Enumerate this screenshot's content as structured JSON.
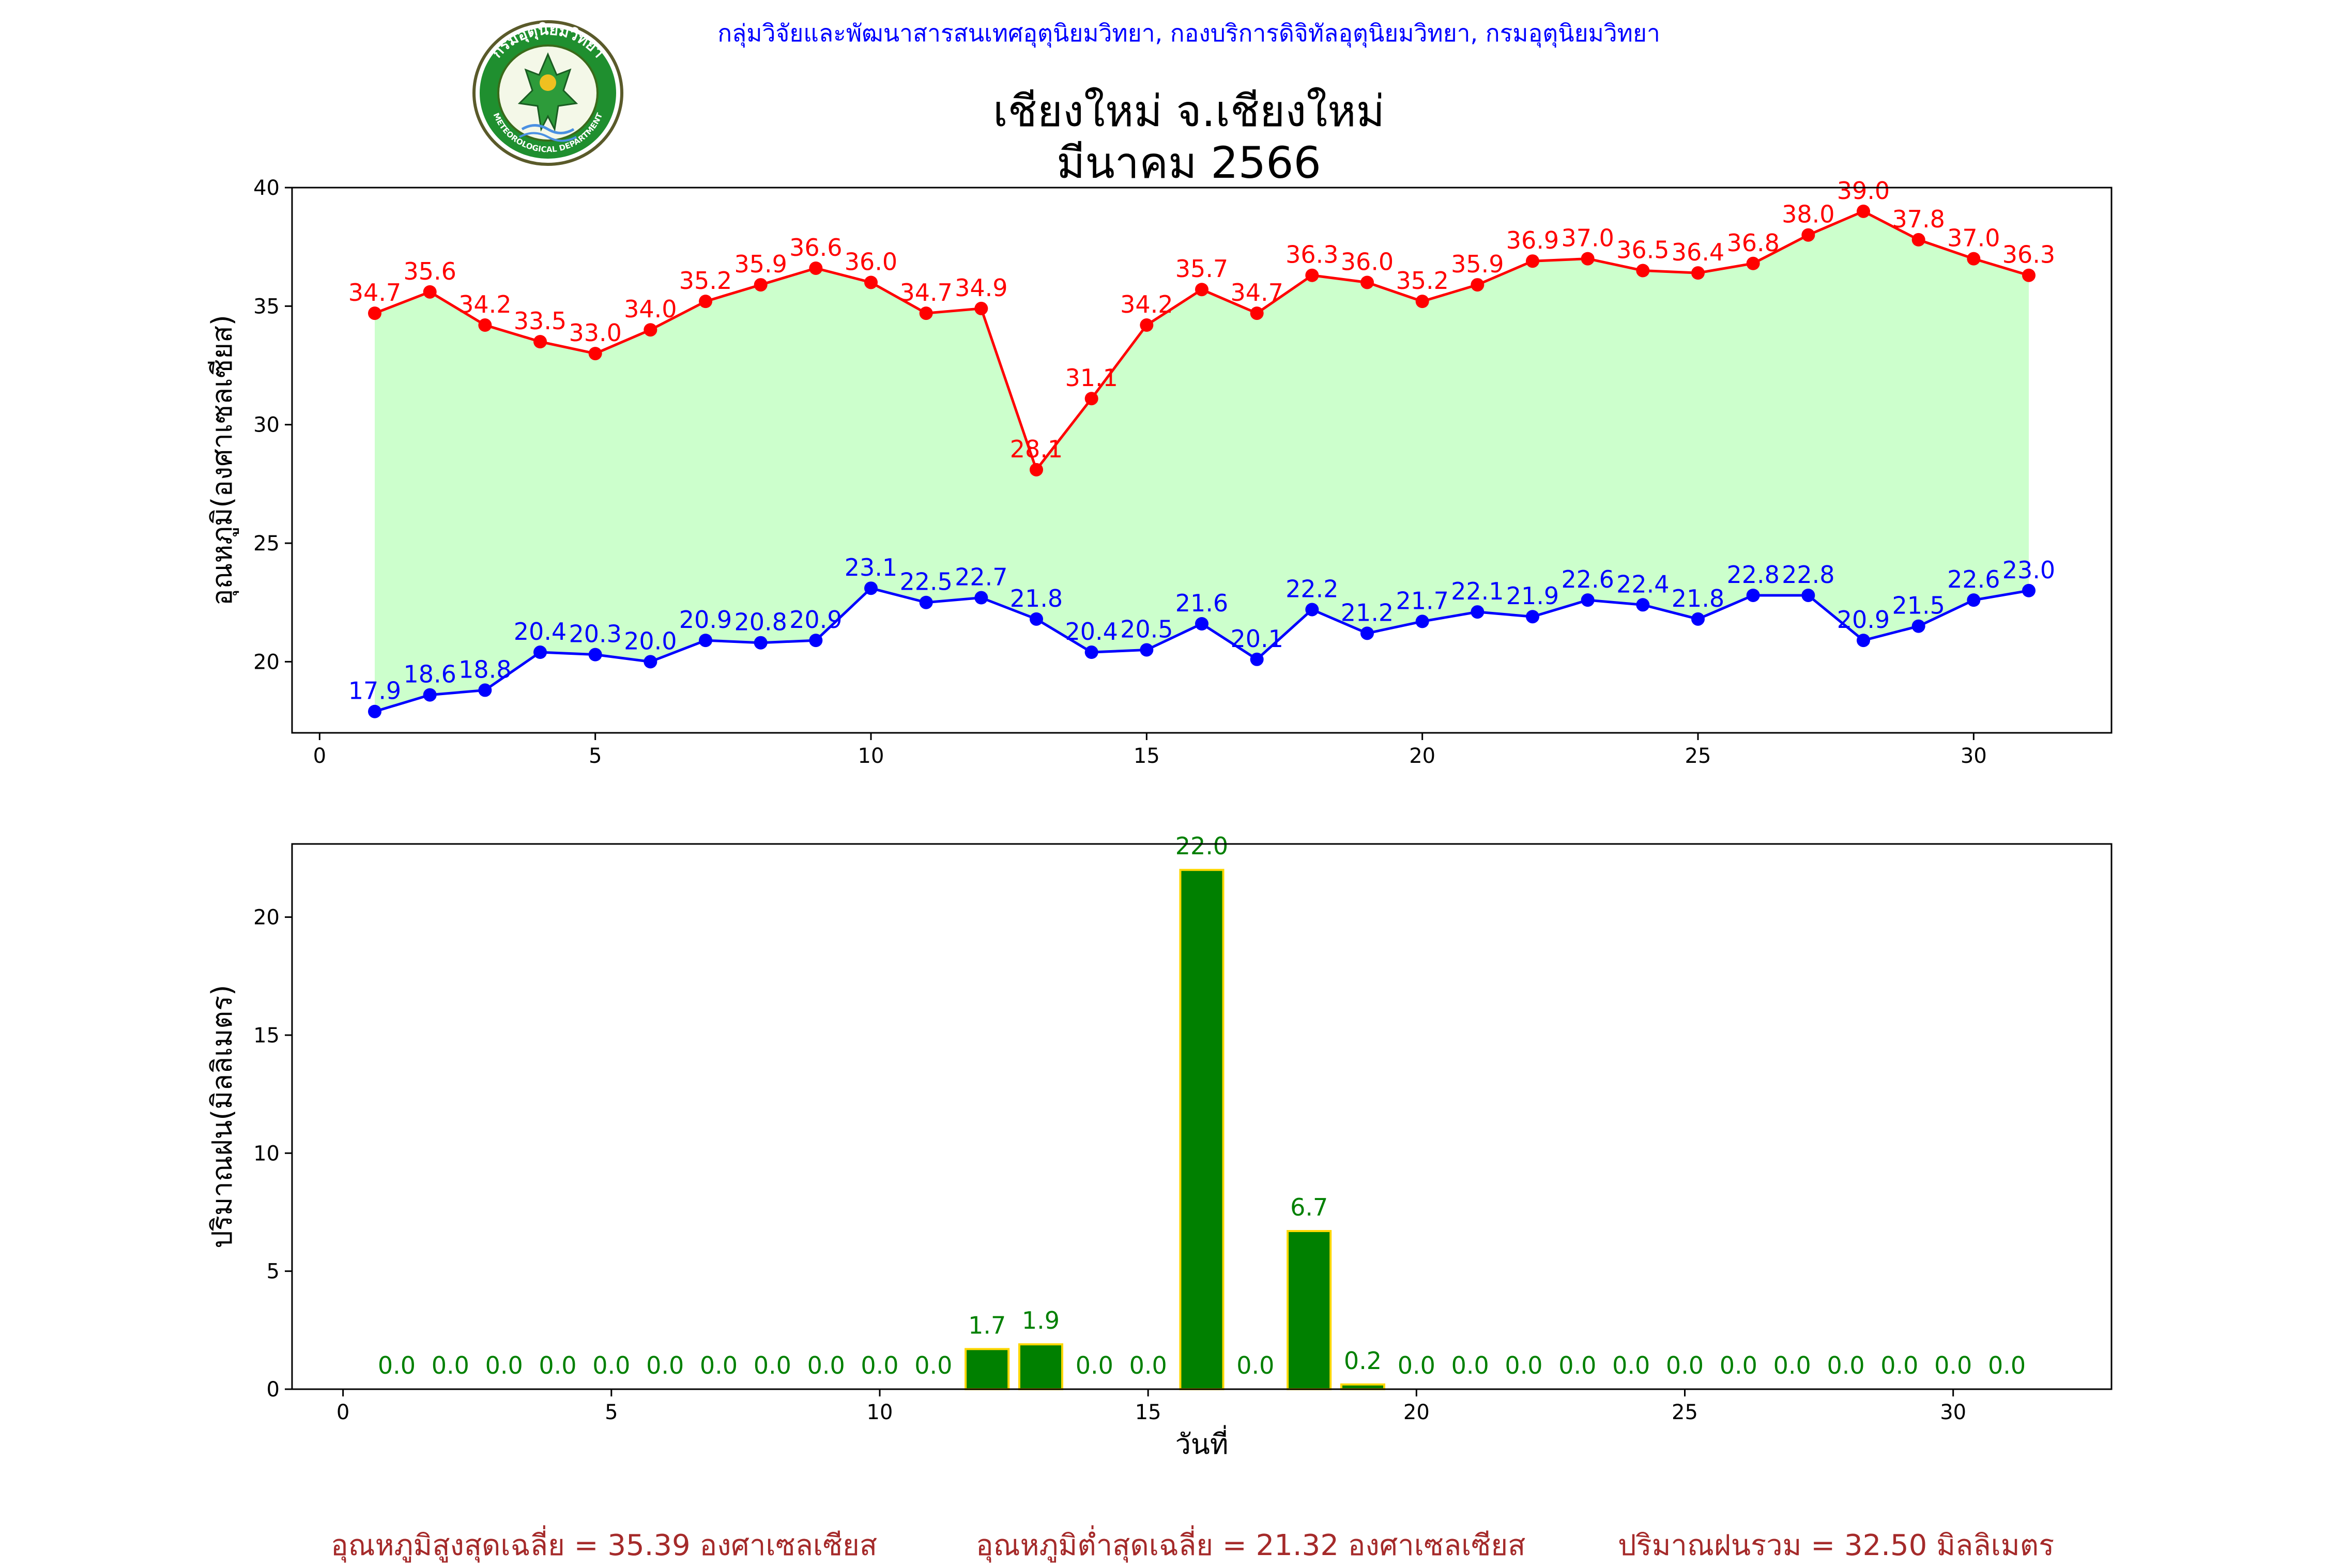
{
  "header": {
    "organization": "กลุ่มวิจัยและพัฒนาสารสนเทศอุตุนิยมวิทยา, กองบริการดิจิทัลอุตุนิยมวิทยา, กรมอุตุนิยมวิทยา",
    "title_line1": "เชียงใหม่ จ.เชียงใหม่",
    "title_line2": "มีนาคม 2566",
    "logo_ring_text": "กรมอุตุนิยมวิทยา",
    "logo_bottom_text": "METEOROLOGICAL DEPARTMENT"
  },
  "colors": {
    "max_temp": "#ff0000",
    "min_temp": "#0000ff",
    "temp_fill": "#ccffcc",
    "rain_bar": "#008000",
    "rain_edge": "#ffd700",
    "rain_label": "#008000",
    "footer_text": "#a52a2a",
    "header_text": "#0000ff"
  },
  "chart_data": [
    {
      "type": "line",
      "ylabel": "อุณหภูมิ(องศาเซลเซียส)",
      "xlabel": "",
      "x": [
        1,
        2,
        3,
        4,
        5,
        6,
        7,
        8,
        9,
        10,
        11,
        12,
        13,
        14,
        15,
        16,
        17,
        18,
        19,
        20,
        21,
        22,
        23,
        24,
        25,
        26,
        27,
        28,
        29,
        30,
        31
      ],
      "xlim": [
        -0.5,
        32.5
      ],
      "ylim": [
        17,
        40
      ],
      "xticks": [
        0,
        5,
        10,
        15,
        20,
        25,
        30
      ],
      "yticks": [
        20,
        25,
        30,
        35,
        40
      ],
      "grid": false,
      "series": [
        {
          "key": "max",
          "values": [
            34.7,
            35.6,
            34.2,
            33.5,
            33.0,
            34.0,
            35.2,
            35.9,
            36.6,
            36.0,
            34.7,
            34.9,
            28.1,
            31.1,
            34.2,
            35.7,
            34.7,
            36.3,
            36.0,
            35.2,
            35.9,
            36.9,
            37.0,
            36.5,
            36.4,
            36.8,
            38.0,
            39.0,
            37.8,
            37.0,
            36.3
          ],
          "labels": [
            "34.7",
            "35.6",
            "34.2",
            "33.5",
            "33.0",
            "34.0",
            "35.2",
            "35.9",
            "36.6",
            "36.0",
            "34.7",
            "34.9",
            "28.1",
            "31.1",
            "34.2",
            "35.7",
            "34.7",
            "36.3",
            "36.0",
            "35.2",
            "35.9",
            "36.9",
            "37.0",
            "36.5",
            "36.4",
            "36.8",
            "38.0",
            "39.0",
            "37.8",
            "37.0",
            "36.3"
          ]
        },
        {
          "key": "min",
          "values": [
            17.9,
            18.6,
            18.8,
            20.4,
            20.3,
            20.0,
            20.9,
            20.8,
            20.9,
            23.1,
            22.5,
            22.7,
            21.8,
            20.4,
            20.5,
            21.6,
            20.1,
            22.2,
            21.2,
            21.7,
            22.1,
            21.9,
            22.6,
            22.4,
            21.8,
            22.8,
            22.8,
            20.9,
            21.5,
            22.6,
            23.0
          ],
          "labels": [
            "17.9",
            "18.6",
            "18.8",
            "20.4",
            "20.3",
            "20.0",
            "20.9",
            "20.8",
            "20.9",
            "23.1",
            "22.5",
            "22.7",
            "21.8",
            "20.4",
            "20.5",
            "21.6",
            "20.1",
            "22.2",
            "21.2",
            "21.7",
            "22.1",
            "21.9",
            "22.6",
            "22.4",
            "21.8",
            "22.8",
            "22.8",
            "20.9",
            "21.5",
            "22.6",
            "23.0"
          ]
        }
      ]
    },
    {
      "type": "bar",
      "ylabel": "ปริมาณฝน(มิลลิเมตร)",
      "xlabel": "วันที่",
      "x": [
        1,
        2,
        3,
        4,
        5,
        6,
        7,
        8,
        9,
        10,
        11,
        12,
        13,
        14,
        15,
        16,
        17,
        18,
        19,
        20,
        21,
        22,
        23,
        24,
        25,
        26,
        27,
        28,
        29,
        30,
        31
      ],
      "values": [
        0,
        0,
        0,
        0,
        0,
        0,
        0,
        0,
        0,
        0,
        0,
        1.7,
        1.9,
        0,
        0,
        22.0,
        0,
        6.7,
        0.2,
        0,
        0,
        0,
        0,
        0,
        0,
        0,
        0,
        0,
        0,
        0,
        0
      ],
      "labels": [
        "0.0",
        "0.0",
        "0.0",
        "0.0",
        "0.0",
        "0.0",
        "0.0",
        "0.0",
        "0.0",
        "0.0",
        "0.0",
        "1.7",
        "1.9",
        "0.0",
        "0.0",
        "22.0",
        "0.0",
        "6.7",
        "0.2",
        "0.0",
        "0.0",
        "0.0",
        "0.0",
        "0.0",
        "0.0",
        "0.0",
        "0.0",
        "0.0",
        "0.0",
        "0.0",
        "0.0"
      ],
      "xlim": [
        -0.95,
        32.95
      ],
      "ylim": [
        0,
        23.1
      ],
      "xticks": [
        0,
        5,
        10,
        15,
        20,
        25,
        30
      ],
      "yticks": [
        0,
        5,
        10,
        15,
        20
      ],
      "grid": false
    }
  ],
  "footer": {
    "avg_max": "อุณหภูมิสูงสุดเฉลี่ย = 35.39 องศาเซลเซียส",
    "avg_min": "อุณหภูมิต่ำสุดเฉลี่ย = 21.32 องศาเซลเซียส",
    "total_rain": "ปริมาณฝนรวม = 32.50 มิลลิเมตร"
  }
}
